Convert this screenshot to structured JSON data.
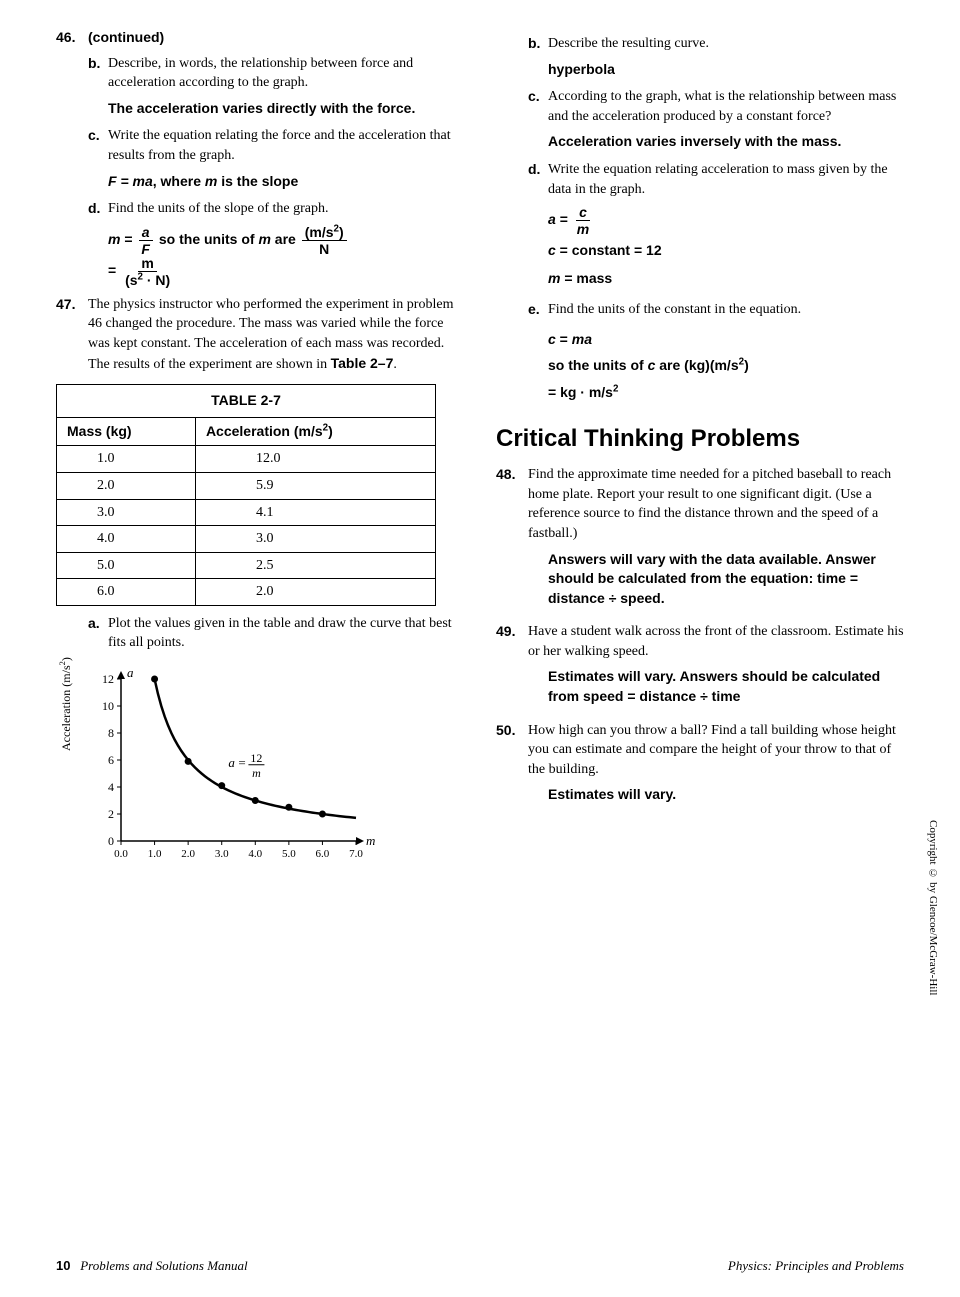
{
  "left": {
    "q46": {
      "num": "46.",
      "cont": "(continued)",
      "b": {
        "lbl": "b.",
        "txt": "Describe, in words, the relationship between force and acceleration according to the graph."
      },
      "b_ans": "The acceleration varies directly with the force.",
      "c": {
        "lbl": "c.",
        "txt": "Write the equation relating the force and the acceleration that results from the graph."
      },
      "c_ans1": "F = ma",
      "c_ans2": ", where ",
      "c_ans3": "m",
      "c_ans4": " is the slope",
      "d": {
        "lbl": "d.",
        "txt": "Find the units of the slope of the graph."
      },
      "d_ans_m": "m",
      "d_ans_eq": " = ",
      "d_ans_a": "a",
      "d_ans_F": "F",
      "d_ans_so": " so the units of ",
      "d_ans_m2": "m",
      "d_ans_are": " are ",
      "d_ans_top": "(m/s",
      "d_ans_sup": "2",
      "d_ans_cp": ")",
      "d_ans_N": "N",
      "d_ans2_eq": "= ",
      "d_ans2_top": "m",
      "d_ans2_bot1": "(s",
      "d_ans2_bot2": "2",
      "d_ans2_bot3": " · N)"
    },
    "q47": {
      "num": "47.",
      "txt1": "The physics instructor who performed the experiment in problem 46 changed the procedure. The mass was varied while the force was kept constant. The acceleration of each mass was recorded. The results of the experiment are shown in ",
      "tbl_ref": "Table 2–7",
      "txt2": ".",
      "a": {
        "lbl": "a.",
        "txt": "Plot the values given in the table and draw the curve that best fits all points."
      }
    },
    "table": {
      "title": "TABLE 2-7",
      "h1": "Mass (kg)",
      "h2a": "Acceleration (m/s",
      "h2b": "2",
      "h2c": ")",
      "rows": [
        [
          "1.0",
          "12.0"
        ],
        [
          "2.0",
          "5.9"
        ],
        [
          "3.0",
          "4.1"
        ],
        [
          "4.0",
          "3.0"
        ],
        [
          "5.0",
          "2.5"
        ],
        [
          "6.0",
          "2.0"
        ]
      ]
    },
    "chart": {
      "ylabel_a": "Acceleration (m/s",
      "ylabel_b": "2",
      "ylabel_c": ")",
      "a_label": "a",
      "m_label": "m",
      "yticks": [
        "12",
        "10",
        "8",
        "6",
        "4",
        "2",
        "0"
      ],
      "xticks": [
        "0.0",
        "1.0",
        "2.0",
        "3.0",
        "4.0",
        "5.0",
        "6.0",
        "7.0"
      ],
      "eq_a": "a",
      "eq_eq": "=",
      "eq_top": "12",
      "eq_bot": "m",
      "points": [
        {
          "x": 1,
          "y": 12
        },
        {
          "x": 2,
          "y": 5.9
        },
        {
          "x": 3,
          "y": 4.1
        },
        {
          "x": 4,
          "y": 3.0
        },
        {
          "x": 5,
          "y": 2.5
        },
        {
          "x": 6,
          "y": 2.0
        }
      ],
      "xlim": 7,
      "ylim": 12
    }
  },
  "right": {
    "b": {
      "lbl": "b.",
      "txt": "Describe the resulting curve."
    },
    "b_ans": "hyperbola",
    "c": {
      "lbl": "c.",
      "txt": "According to the graph, what is the relationship between mass and the acceleration produced by a constant force?"
    },
    "c_ans": "Acceleration varies inversely with the mass.",
    "d": {
      "lbl": "d.",
      "txt": "Write the equation relating acceleration to mass given by the data in the graph."
    },
    "d_ans_a": "a",
    "d_ans_eq": " = ",
    "d_ans_c": "c",
    "d_ans_m": "m",
    "d_ans2_c": "c",
    "d_ans2_t": " = constant = 12",
    "d_ans3_m": "m",
    "d_ans3_t": " = mass",
    "e": {
      "lbl": "e.",
      "txt": "Find the units of the constant in the equation."
    },
    "e_ans1_c": "c",
    "e_ans1_t": " = ",
    "e_ans1_ma": "ma",
    "e_ans2a": "so the units of ",
    "e_ans2c": "c",
    "e_ans2b": " are (kg)(m/s",
    "e_ans2sup": "2",
    "e_ans2cp": ")",
    "e_ans3a": "= kg · m/s",
    "e_ans3sup": "2",
    "section": "Critical Thinking Problems",
    "q48": {
      "num": "48.",
      "txt": "Find the approximate time needed for a pitched baseball to reach home plate. Report your result to one significant digit. (Use a reference source to find the distance thrown and the speed of a fastball.)",
      "ans": "Answers will vary with the data available. Answer should be calculated from the equation: time = distance ÷ speed."
    },
    "q49": {
      "num": "49.",
      "txt": "Have a student walk across the front of the classroom. Estimate his or her walking speed.",
      "ans": "Estimates will vary. Answers should be calculated from speed = distance ÷ time"
    },
    "q50": {
      "num": "50.",
      "txt": "How high can you throw a ball? Find a tall building whose height you can estimate and compare the height of your throw to that of the building.",
      "ans": "Estimates will vary."
    }
  },
  "foot": {
    "page": "10",
    "mid": "Problems and Solutions Manual",
    "right": "Physics: Principles and Problems"
  },
  "copyright": "Copyright © by Glencoe/McGraw-Hill"
}
